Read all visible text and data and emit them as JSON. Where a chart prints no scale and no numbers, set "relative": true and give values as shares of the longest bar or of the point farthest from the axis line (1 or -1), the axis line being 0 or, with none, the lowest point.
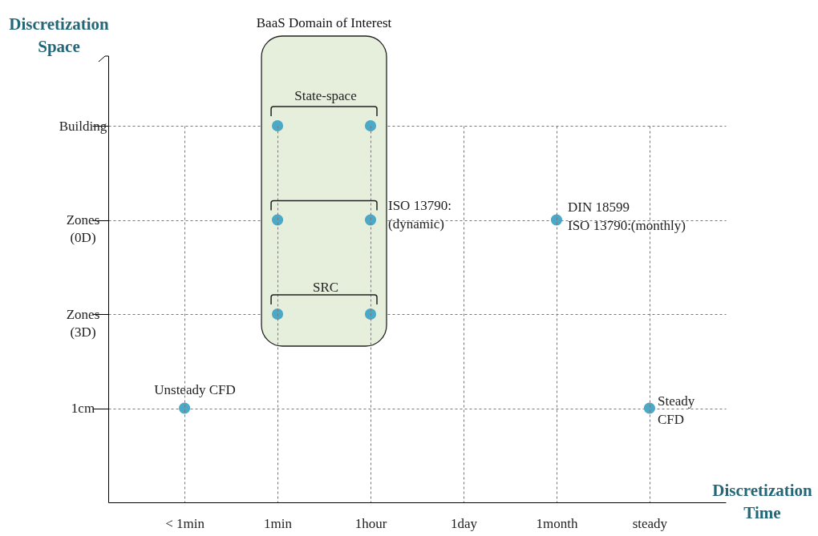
{
  "chart_data": {
    "type": "scatter",
    "relative": true,
    "xlabel": "Discretization Time",
    "ylabel": "Discretization Space",
    "categories": [
      "< 1min",
      "1min",
      "1hour",
      "1day",
      "1month",
      "steady"
    ],
    "y_categories": [
      "Building",
      "Zones\n(0D)",
      "Zones\n(3D)",
      "1cm"
    ],
    "series": [
      {
        "color": "#4ba9c8",
        "x": [
          "1min",
          "1hour",
          "1min",
          "1hour",
          "1month",
          "1min",
          "1hour",
          "< 1min",
          "steady"
        ],
        "values": [
          1,
          1,
          0.75,
          0.75,
          0.75,
          0.5,
          0.5,
          0.25,
          0.25
        ]
      }
    ],
    "grid": true,
    "marker": "circle",
    "bands": [
      {
        "axis": "x",
        "from": "1min",
        "to": "1hour",
        "label": "BaaS Domain of Interest",
        "color": "#e6eedc"
      }
    ],
    "annotations": [
      "State-space",
      "ISO 13790:\n(dynamic)",
      "DIN 18599\nISO 13790:(monthly)",
      "SRC",
      "Unsteady CFD",
      "Steady\nCFD"
    ]
  }
}
